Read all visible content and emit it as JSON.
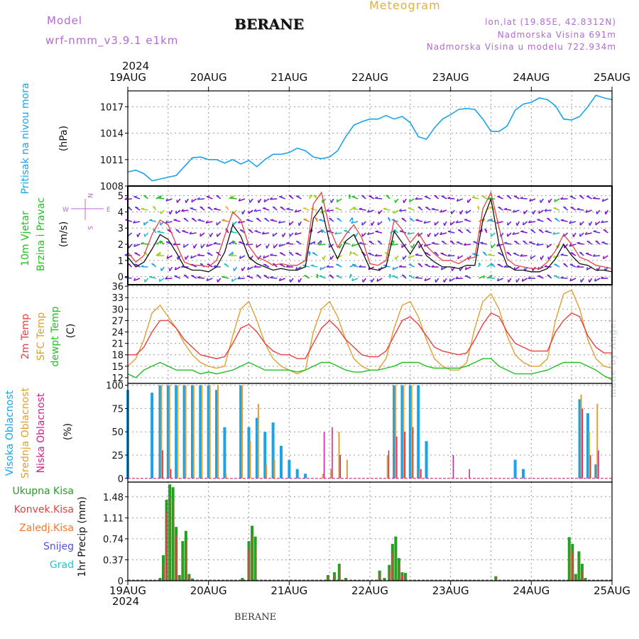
{
  "header": {
    "model_label": "Model",
    "model_run": "wrf-nmm_v3.9.1  e1km",
    "station": "BERANE",
    "chart_kind": "Meteogram",
    "lonlat": "lon,lat (19.85E, 42.8312N)",
    "elevation": "Nadmorska Visina 691m",
    "model_elevation": "Nadmorska Visina u modelu 722.934m"
  },
  "time_axis": {
    "year": "2024",
    "ticks": [
      "19AUG",
      "20AUG",
      "21AUG",
      "22AUG",
      "23AUG",
      "24AUG",
      "25AUG"
    ]
  },
  "footer": {
    "station": "BERANE",
    "credit": "made by Angel"
  },
  "colors": {
    "pressure": "#1aa3e8",
    "wind_speed": "#111111",
    "wind_gust": "#e84040",
    "temp2m": "#e84040",
    "sfc_temp": "#e0a030",
    "dewpt": "#22c022",
    "cloud_high": "#1aa3e8",
    "cloud_mid": "#e0a030",
    "cloud_low": "#d0208c",
    "precip_total": "#22a022",
    "precip_conv": "#e84040"
  },
  "chart_data": [
    {
      "type": "line",
      "panel": "pressure",
      "ylabel": "Pritisak na nivou mora",
      "unit": "(hPa)",
      "yticks": [
        1008,
        1011,
        1014,
        1017
      ],
      "ylim": [
        1008,
        1018.8
      ],
      "x_days": [
        0,
        0.1,
        0.2,
        0.3,
        0.4,
        0.5,
        0.6,
        0.7,
        0.8,
        0.9,
        1.0,
        1.1,
        1.2,
        1.3,
        1.4,
        1.5,
        1.6,
        1.7,
        1.8,
        1.9,
        2.0,
        2.1,
        2.2,
        2.3,
        2.4,
        2.5,
        2.6,
        2.7,
        2.8,
        2.9,
        3.0,
        3.1,
        3.2,
        3.3,
        3.4,
        3.5,
        3.6,
        3.7,
        3.8,
        3.9,
        4.0,
        4.1,
        4.2,
        4.3,
        4.4,
        4.5,
        4.6,
        4.7,
        4.8,
        4.9,
        5.0,
        5.1,
        5.2,
        5.3,
        5.4,
        5.5,
        5.6,
        5.7,
        5.8,
        5.9,
        6.0
      ],
      "series": [
        {
          "values": [
            1009.6,
            1009.8,
            1009.4,
            1008.6,
            1008.8,
            1009.0,
            1009.2,
            1010.2,
            1011.2,
            1011.3,
            1011.0,
            1011.0,
            1010.6,
            1011.0,
            1010.5,
            1010.9,
            1010.2,
            1011.0,
            1011.6,
            1011.6,
            1011.8,
            1012.3,
            1012.0,
            1011.3,
            1011.1,
            1011.3,
            1012.0,
            1013.6,
            1014.9,
            1015.3,
            1015.6,
            1015.6,
            1016.0,
            1015.6,
            1015.9,
            1015.2,
            1013.6,
            1013.3,
            1014.6,
            1015.6,
            1016.1,
            1016.7,
            1016.8,
            1016.7,
            1015.6,
            1014.2,
            1014.2,
            1014.8,
            1016.6,
            1017.3,
            1017.5,
            1018.0,
            1017.8,
            1017.1,
            1015.6,
            1015.5,
            1015.9,
            1017.0,
            1018.3,
            1018.0,
            1017.8
          ]
        }
      ]
    },
    {
      "type": "line",
      "panel": "wind",
      "ylabel": "10m Vjetar",
      "ylabel2": "Brzina i Pravac",
      "unit": "(m/s)",
      "compass": {
        "n": "N",
        "s": "S",
        "e": "E",
        "w": "W"
      },
      "yticks": [
        0,
        1,
        2,
        3,
        4,
        5
      ],
      "ylim": [
        -0.5,
        5.6
      ],
      "x_days": [
        0,
        0.1,
        0.2,
        0.3,
        0.4,
        0.5,
        0.6,
        0.7,
        0.8,
        0.9,
        1.0,
        1.1,
        1.2,
        1.3,
        1.4,
        1.5,
        1.6,
        1.7,
        1.8,
        1.9,
        2.0,
        2.1,
        2.2,
        2.3,
        2.4,
        2.5,
        2.6,
        2.7,
        2.8,
        2.9,
        3.0,
        3.1,
        3.2,
        3.3,
        3.4,
        3.5,
        3.6,
        3.7,
        3.8,
        3.9,
        4.0,
        4.1,
        4.2,
        4.3,
        4.4,
        4.5,
        4.6,
        4.7,
        4.8,
        4.9,
        5.0,
        5.1,
        5.2,
        5.3,
        5.4,
        5.5,
        5.6,
        5.7,
        5.8,
        5.9,
        6.0
      ],
      "series": [
        {
          "name": "speed",
          "values": [
            1.2,
            0.6,
            0.9,
            1.7,
            2.6,
            2.3,
            1.5,
            0.6,
            0.4,
            0.4,
            0.3,
            0.6,
            1.5,
            3.2,
            2.5,
            1.2,
            0.8,
            0.6,
            0.4,
            0.5,
            0.4,
            0.4,
            0.6,
            3.6,
            4.3,
            2.1,
            1.1,
            2.2,
            2.6,
            1.6,
            0.5,
            0.4,
            0.6,
            2.8,
            2.1,
            1.4,
            2.2,
            1.3,
            0.9,
            0.6,
            0.6,
            0.5,
            0.7,
            0.7,
            3.5,
            4.8,
            2.0,
            0.7,
            0.4,
            0.4,
            0.3,
            0.3,
            0.5,
            1.1,
            2.0,
            1.3,
            0.8,
            0.7,
            0.4,
            0.4,
            0.3
          ]
        },
        {
          "name": "gust",
          "values": [
            1.5,
            0.9,
            1.3,
            2.6,
            3.5,
            3.2,
            2.0,
            0.9,
            0.7,
            0.7,
            0.6,
            1.0,
            2.5,
            4.0,
            3.5,
            1.9,
            1.2,
            1.0,
            0.7,
            0.8,
            0.7,
            0.7,
            1.0,
            4.5,
            5.2,
            3.0,
            1.8,
            2.6,
            3.2,
            2.4,
            0.8,
            0.7,
            1.0,
            3.5,
            2.9,
            2.1,
            2.7,
            1.9,
            1.4,
            1.0,
            1.0,
            0.8,
            1.1,
            1.2,
            4.2,
            5.2,
            3.0,
            1.1,
            0.7,
            0.6,
            0.5,
            0.5,
            0.9,
            1.6,
            2.6,
            2.0,
            1.2,
            1.0,
            0.7,
            0.6,
            0.5
          ]
        }
      ]
    },
    {
      "type": "line",
      "panel": "temperature",
      "ylabel": "2m Temp",
      "ylabel2": "SFC Temp",
      "ylabel3": "dewpt Temp",
      "unit": "(C)",
      "yticks": [
        12,
        15,
        18,
        21,
        24,
        27,
        30,
        33,
        36
      ],
      "ylim": [
        10.5,
        36.4
      ],
      "x_days": [
        0,
        0.1,
        0.2,
        0.3,
        0.4,
        0.5,
        0.6,
        0.7,
        0.8,
        0.9,
        1.0,
        1.1,
        1.2,
        1.3,
        1.4,
        1.5,
        1.6,
        1.7,
        1.8,
        1.9,
        2.0,
        2.1,
        2.2,
        2.3,
        2.4,
        2.5,
        2.6,
        2.7,
        2.8,
        2.9,
        3.0,
        3.1,
        3.2,
        3.3,
        3.4,
        3.5,
        3.6,
        3.7,
        3.8,
        3.9,
        4.0,
        4.1,
        4.2,
        4.3,
        4.4,
        4.5,
        4.6,
        4.7,
        4.8,
        4.9,
        5.0,
        5.1,
        5.2,
        5.3,
        5.4,
        5.5,
        5.6,
        5.7,
        5.8,
        5.9,
        6.0
      ],
      "series": [
        {
          "name": "2m",
          "values": [
            18,
            18,
            20,
            24,
            27,
            27,
            25,
            22,
            20,
            18,
            17.5,
            17,
            17.5,
            21,
            25,
            26,
            24,
            21,
            19,
            18,
            18,
            17,
            17,
            21,
            25,
            27,
            25,
            22,
            20,
            18,
            17.5,
            17.5,
            19,
            23,
            27,
            28,
            26,
            23,
            20,
            19,
            18.5,
            18,
            18.5,
            22,
            26,
            29,
            28,
            24,
            21,
            20,
            19,
            19,
            19,
            24,
            27,
            29,
            28,
            23,
            20,
            18.5,
            18.5
          ]
        },
        {
          "name": "sfc",
          "values": [
            15,
            17,
            22,
            29,
            31,
            28,
            25,
            21,
            18,
            16,
            15,
            14.5,
            15,
            23,
            30,
            32,
            27,
            21,
            17,
            15,
            14,
            13,
            14,
            24,
            30,
            32,
            28,
            22,
            17,
            15,
            14,
            14,
            17,
            25,
            31,
            32,
            28,
            22,
            17,
            15,
            14,
            14,
            16,
            25,
            32,
            34,
            30,
            23,
            18,
            16,
            15,
            15,
            17,
            27,
            34,
            35,
            30,
            22,
            17,
            15,
            14.5
          ]
        },
        {
          "name": "dewpt",
          "values": [
            13,
            12,
            14,
            15,
            16,
            15,
            14,
            14,
            14,
            13,
            13.5,
            13,
            13.5,
            14,
            15,
            16,
            15,
            14,
            14,
            14,
            14,
            13.5,
            14,
            15,
            16,
            16,
            15,
            14,
            13.5,
            13.5,
            14,
            14,
            14.5,
            15,
            16,
            16,
            16,
            15,
            14.5,
            14.5,
            14.5,
            14.5,
            15,
            16,
            17,
            17,
            15,
            14,
            13,
            13,
            13,
            13.5,
            14,
            15,
            16,
            16,
            16,
            15,
            14,
            12.5,
            11.5
          ]
        }
      ]
    },
    {
      "type": "bar",
      "panel": "cloud",
      "ylabel": "Visoka Oblacnost",
      "ylabel2": "Srednja Oblacnost",
      "ylabel3": "Niska Oblacnost",
      "unit": "(%)",
      "yticks": [
        0,
        25,
        50,
        75,
        100
      ],
      "ylim": [
        -4,
        102
      ],
      "x_days": [
        0,
        0.1,
        0.2,
        0.3,
        0.4,
        0.5,
        0.6,
        0.7,
        0.8,
        0.9,
        1.0,
        1.1,
        1.2,
        1.3,
        1.4,
        1.5,
        1.6,
        1.7,
        1.8,
        1.9,
        2.0,
        2.1,
        2.2,
        2.3,
        2.4,
        2.5,
        2.6,
        2.7,
        2.8,
        2.9,
        3.0,
        3.1,
        3.2,
        3.3,
        3.4,
        3.5,
        3.6,
        3.7,
        3.8,
        3.9,
        4.0,
        4.1,
        4.2,
        4.3,
        4.4,
        4.5,
        4.6,
        4.7,
        4.8,
        4.9,
        5.0,
        5.1,
        5.2,
        5.3,
        5.4,
        5.5,
        5.6,
        5.7,
        5.8,
        5.9,
        6.0
      ],
      "series": [
        {
          "name": "high",
          "values": [
            95,
            0,
            0,
            92,
            100,
            100,
            100,
            100,
            100,
            100,
            100,
            95,
            55,
            0,
            100,
            55,
            65,
            50,
            60,
            35,
            20,
            10,
            5,
            0,
            0,
            0,
            0,
            0,
            0,
            0,
            0,
            0,
            0,
            100,
            100,
            100,
            100,
            40,
            0,
            0,
            0,
            0,
            0,
            0,
            0,
            0,
            0,
            0,
            20,
            10,
            0,
            0,
            0,
            0,
            0,
            0,
            85,
            70,
            15,
            0,
            0
          ]
        },
        {
          "name": "mid",
          "values": [
            0,
            0,
            0,
            0,
            100,
            100,
            100,
            100,
            100,
            100,
            100,
            100,
            5,
            0,
            100,
            40,
            80,
            15,
            20,
            0,
            0,
            0,
            0,
            0,
            5,
            10,
            50,
            20,
            0,
            0,
            0,
            0,
            25,
            100,
            100,
            100,
            10,
            0,
            0,
            0,
            0,
            0,
            0,
            0,
            0,
            0,
            0,
            0,
            0,
            0,
            0,
            0,
            0,
            0,
            0,
            0,
            90,
            50,
            80,
            0,
            0
          ]
        },
        {
          "name": "low",
          "values": [
            0,
            0,
            0,
            0,
            30,
            10,
            0,
            0,
            0,
            0,
            0,
            0,
            0,
            0,
            0,
            0,
            0,
            0,
            0,
            0,
            0,
            0,
            0,
            0,
            50,
            55,
            25,
            0,
            0,
            0,
            0,
            0,
            30,
            45,
            50,
            55,
            10,
            0,
            0,
            0,
            25,
            0,
            10,
            0,
            0,
            0,
            0,
            0,
            0,
            0,
            0,
            0,
            0,
            0,
            0,
            0,
            75,
            25,
            30,
            0,
            0
          ]
        }
      ]
    },
    {
      "type": "bar",
      "panel": "precip",
      "ylabel": "1hr Precip (mm)",
      "legend": [
        "Ukupna  Kisa",
        "Konvek.Kisa",
        "Zaledj.Kisa",
        "Snijeg",
        "Grad"
      ],
      "legend_colors": [
        "#22a022",
        "#e84040",
        "#f07828",
        "#5050e0",
        "#20c8c8"
      ],
      "yticks": [
        0,
        0.37,
        0.74,
        1.11,
        1.48
      ],
      "ylim": [
        0,
        1.74
      ],
      "bars": [
        {
          "x": 0.4,
          "total": 0.05,
          "conv": 0.03
        },
        {
          "x": 0.44,
          "total": 0.45,
          "conv": 0.3
        },
        {
          "x": 0.48,
          "total": 1.43,
          "conv": 1.2
        },
        {
          "x": 0.52,
          "total": 1.7,
          "conv": 1.5
        },
        {
          "x": 0.56,
          "total": 1.65,
          "conv": 1.4
        },
        {
          "x": 0.6,
          "total": 0.95,
          "conv": 0.8
        },
        {
          "x": 0.64,
          "total": 0.1,
          "conv": 0.08
        },
        {
          "x": 0.68,
          "total": 0.7,
          "conv": 0.55
        },
        {
          "x": 0.72,
          "total": 0.88,
          "conv": 0.7
        },
        {
          "x": 0.76,
          "total": 0.12,
          "conv": 0.08
        },
        {
          "x": 0.8,
          "total": 0.04,
          "conv": 0.02
        },
        {
          "x": 1.42,
          "total": 0.05,
          "conv": 0.03
        },
        {
          "x": 1.5,
          "total": 0.7,
          "conv": 0.55
        },
        {
          "x": 1.54,
          "total": 0.97,
          "conv": 0.8
        },
        {
          "x": 1.58,
          "total": 0.78,
          "conv": 0.6
        },
        {
          "x": 2.48,
          "total": 0.1,
          "conv": 0.08
        },
        {
          "x": 2.56,
          "total": 0.15,
          "conv": 0.1
        },
        {
          "x": 2.62,
          "total": 0.3,
          "conv": 0.25
        },
        {
          "x": 2.7,
          "total": 0.05,
          "conv": 0.03
        },
        {
          "x": 3.12,
          "total": 0.18,
          "conv": 0.12
        },
        {
          "x": 3.18,
          "total": 0.05,
          "conv": 0.03
        },
        {
          "x": 3.24,
          "total": 0.28,
          "conv": 0.2
        },
        {
          "x": 3.28,
          "total": 0.65,
          "conv": 0.5
        },
        {
          "x": 3.32,
          "total": 0.78,
          "conv": 0.6
        },
        {
          "x": 3.36,
          "total": 0.4,
          "conv": 0.3
        },
        {
          "x": 3.4,
          "total": 0.15,
          "conv": 0.1
        },
        {
          "x": 3.44,
          "total": 0.14,
          "conv": 0.1
        },
        {
          "x": 4.56,
          "total": 0.08,
          "conv": 0.05
        },
        {
          "x": 5.47,
          "total": 0.77,
          "conv": 0.6
        },
        {
          "x": 5.51,
          "total": 0.65,
          "conv": 0.5
        },
        {
          "x": 5.55,
          "total": 0.12,
          "conv": 0.08
        },
        {
          "x": 5.59,
          "total": 0.52,
          "conv": 0.45
        },
        {
          "x": 5.63,
          "total": 0.3,
          "conv": 0.2
        },
        {
          "x": 5.67,
          "total": 0.05,
          "conv": 0.03
        }
      ]
    }
  ]
}
